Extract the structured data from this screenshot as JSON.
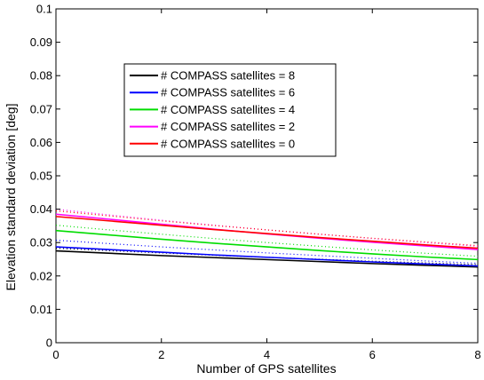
{
  "chart_data": {
    "type": "line",
    "title": "",
    "xlabel": "Number of GPS satellites",
    "ylabel": "Elevation standard deviation [deg]",
    "xlim": [
      0,
      8
    ],
    "ylim": [
      0,
      0.1
    ],
    "xticks": [
      "0",
      "2",
      "4",
      "6",
      "8"
    ],
    "yticks": [
      "0",
      "0.01",
      "0.02",
      "0.03",
      "0.04",
      "0.05",
      "0.06",
      "0.07",
      "0.08",
      "0.09",
      "0.1"
    ],
    "legend_position": "upper-center",
    "grid": false,
    "x": [
      0,
      1,
      2,
      3,
      4,
      5,
      6,
      7,
      8
    ],
    "series": [
      {
        "name": "# COMPASS satellites = 8",
        "color": "#000000",
        "values": [
          0.0275,
          0.0268,
          0.0261,
          0.0255,
          0.0249,
          0.0243,
          0.0237,
          0.0232,
          0.0227
        ],
        "dotted_values": [
          0.0283,
          0.0276,
          0.0269,
          0.0262,
          0.0256,
          0.025,
          0.0244,
          0.0239,
          0.0234
        ]
      },
      {
        "name": "# COMPASS satellites = 6",
        "color": "#0000ff",
        "values": [
          0.0287,
          0.0279,
          0.0271,
          0.0263,
          0.0256,
          0.0249,
          0.0242,
          0.0236,
          0.023
        ],
        "dotted_values": [
          0.0307,
          0.0297,
          0.0287,
          0.0278,
          0.0269,
          0.0261,
          0.0253,
          0.0245,
          0.0238
        ]
      },
      {
        "name": "# COMPASS satellites = 4",
        "color": "#00dd00",
        "values": [
          0.0336,
          0.0323,
          0.031,
          0.0298,
          0.0287,
          0.0276,
          0.0266,
          0.0257,
          0.0249
        ],
        "dotted_values": [
          0.0352,
          0.0338,
          0.0325,
          0.0312,
          0.03,
          0.0289,
          0.0278,
          0.0268,
          0.0259
        ]
      },
      {
        "name": "# COMPASS satellites = 2",
        "color": "#ff00ff",
        "values": [
          0.0385,
          0.037,
          0.0355,
          0.034,
          0.0326,
          0.0313,
          0.0301,
          0.029,
          0.0279
        ],
        "dotted_values": [
          0.04,
          0.0383,
          0.0367,
          0.0352,
          0.0338,
          0.0325,
          0.0312,
          0.03,
          0.0289
        ]
      },
      {
        "name": "# COMPASS satellites = 0",
        "color": "#ff0000",
        "values": [
          0.0378,
          0.0365,
          0.0352,
          0.0339,
          0.0327,
          0.0315,
          0.0304,
          0.0293,
          0.0283
        ],
        "dotted_values": [
          0.0395,
          0.038,
          0.0365,
          0.0351,
          0.0338,
          0.0325,
          0.0313,
          0.0302,
          0.0291
        ]
      }
    ]
  }
}
